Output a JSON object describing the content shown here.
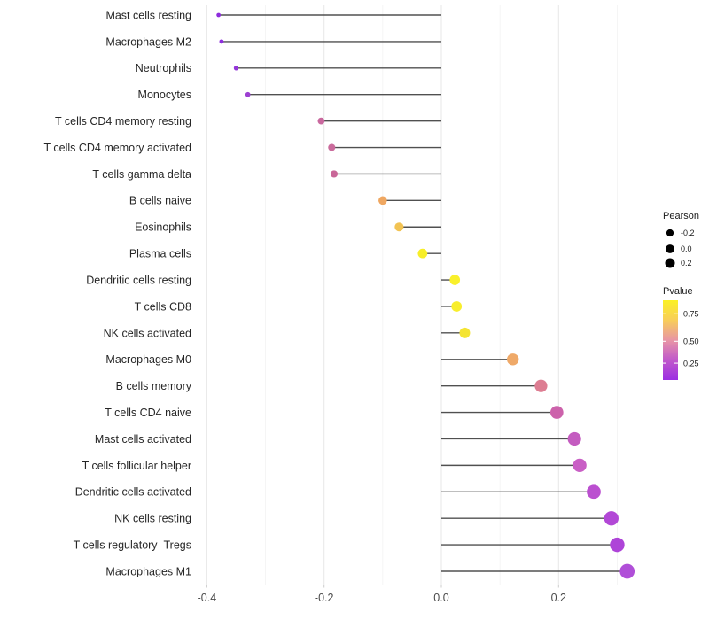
{
  "chart_data": {
    "type": "scatter",
    "subtype": "horizontal-lollipop",
    "title": "",
    "xlabel": "",
    "ylabel": "",
    "xlim": [
      -0.42,
      0.35
    ],
    "baseline_x": 0.0,
    "x_major_ticks": [
      -0.4,
      -0.2,
      0.0,
      0.2
    ],
    "x_tick_labels": [
      "-0.4",
      "-0.2",
      "0.0",
      "0.2"
    ],
    "x_minor_ticks": [
      -0.3,
      -0.1,
      0.1,
      0.3
    ],
    "grid": "major and minor vertical gridlines, light gray on white",
    "legend_position": "right",
    "categories": [
      "Mast cells resting",
      "Macrophages M2",
      "Neutrophils",
      "Monocytes",
      "T cells CD4 memory resting",
      "T cells CD4 memory activated",
      "T cells gamma delta",
      "B cells naive",
      "Eosinophils",
      "Plasma cells",
      "Dendritic cells resting",
      "T cells CD8",
      "NK cells activated",
      "Macrophages M0",
      "B cells memory",
      "T cells CD4 naive",
      "Mast cells activated",
      "T cells follicular helper",
      "Dendritic cells activated",
      "NK cells resting",
      "T cells regulatory  Tregs",
      "Macrophages M1"
    ],
    "series": [
      {
        "name": "Pearson",
        "values": [
          -0.38,
          -0.375,
          -0.35,
          -0.33,
          -0.205,
          -0.187,
          -0.183,
          -0.1,
          -0.072,
          -0.032,
          0.023,
          0.026,
          0.04,
          0.122,
          0.17,
          0.197,
          0.227,
          0.236,
          0.26,
          0.29,
          0.3,
          0.317
        ]
      }
    ],
    "point_colors": [
      "#8e2cdd",
      "#8e2edd",
      "#9436d9",
      "#9d40d2",
      "#c9689e",
      "#ca6b9c",
      "#c96798",
      "#efa761",
      "#f2c353",
      "#f7ee28",
      "#f9f02b",
      "#f8ee2c",
      "#f4e433",
      "#efa968",
      "#dd7d92",
      "#cc62ab",
      "#c45cc0",
      "#c95fc5",
      "#bb4fd0",
      "#b248d6",
      "#ae44d8",
      "#b04fd8"
    ],
    "legends": {
      "size": {
        "title": "Pearson",
        "entries": [
          "-0.2",
          "0.0",
          "0.2"
        ],
        "dot_color": "#000000"
      },
      "color": {
        "title": "Pvalue",
        "tick_labels": [
          "0.75",
          "0.50",
          "0.25"
        ],
        "gradient_top_to_bottom": [
          "#fbf125",
          "#f8cd5a",
          "#e895a5",
          "#c058cb",
          "#9c2ee2"
        ]
      }
    }
  },
  "colors": {
    "background": "#ffffff",
    "grid_major": "#e9e9e9",
    "grid_minor": "#f4f4f4",
    "axis_tick": "#cccccc",
    "stem": "#3d3d3d",
    "category_text": "#262626",
    "axis_text": "#4a4a4a",
    "legend_text": "#1a1a1a"
  }
}
